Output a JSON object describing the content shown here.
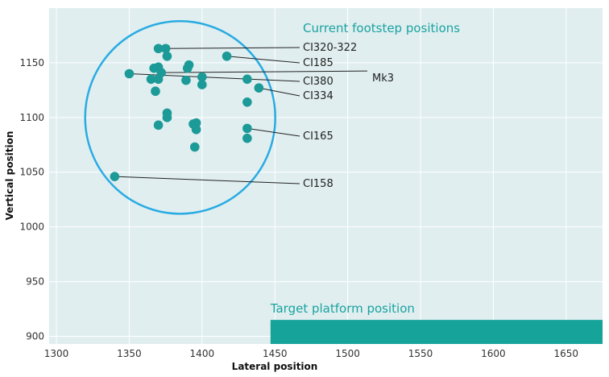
{
  "chart_data": {
    "type": "scatter",
    "title": "",
    "xlabel": "Lateral position",
    "ylabel": "Vertical position",
    "xlim": [
      1295,
      1675
    ],
    "ylim": [
      893,
      1200
    ],
    "x_ticks": [
      1300,
      1350,
      1400,
      1450,
      1500,
      1550,
      1600,
      1650
    ],
    "y_ticks": [
      900,
      950,
      1000,
      1050,
      1100,
      1150
    ],
    "colors": {
      "plot_bg": "#e0eef0",
      "grid": "#ffffff",
      "points": "#1b9a98",
      "circle": "#29abe2",
      "platform": "#16a39a",
      "annotation_title": "#1aa39f"
    },
    "series": [
      {
        "name": "Current footstep positions",
        "points": [
          {
            "x": 1370,
            "y": 1163
          },
          {
            "x": 1375,
            "y": 1163
          },
          {
            "x": 1376,
            "y": 1156
          },
          {
            "x": 1391,
            "y": 1148
          },
          {
            "x": 1390,
            "y": 1145
          },
          {
            "x": 1367,
            "y": 1145
          },
          {
            "x": 1370,
            "y": 1146
          },
          {
            "x": 1372,
            "y": 1141
          },
          {
            "x": 1350,
            "y": 1140
          },
          {
            "x": 1365,
            "y": 1135
          },
          {
            "x": 1370,
            "y": 1135
          },
          {
            "x": 1389,
            "y": 1134
          },
          {
            "x": 1400,
            "y": 1137
          },
          {
            "x": 1400,
            "y": 1130
          },
          {
            "x": 1368,
            "y": 1124
          },
          {
            "x": 1417,
            "y": 1156
          },
          {
            "x": 1431,
            "y": 1135
          },
          {
            "x": 1439,
            "y": 1127
          },
          {
            "x": 1431,
            "y": 1114
          },
          {
            "x": 1376,
            "y": 1104
          },
          {
            "x": 1376,
            "y": 1100
          },
          {
            "x": 1370,
            "y": 1093
          },
          {
            "x": 1394,
            "y": 1094
          },
          {
            "x": 1396,
            "y": 1095
          },
          {
            "x": 1396,
            "y": 1089
          },
          {
            "x": 1431,
            "y": 1090
          },
          {
            "x": 1431,
            "y": 1081
          },
          {
            "x": 1395,
            "y": 1073
          },
          {
            "x": 1340,
            "y": 1046
          }
        ]
      }
    ],
    "annotations": [
      {
        "label": "CI320-322",
        "x": 1375,
        "y": 1163
      },
      {
        "label": "CI185",
        "x": 1417,
        "y": 1156
      },
      {
        "label": "CI380",
        "x": 1350,
        "y": 1140
      },
      {
        "label": "Mk3",
        "x": 1372,
        "y": 1141
      },
      {
        "label": "CI334",
        "x": 1439,
        "y": 1127
      },
      {
        "label": "CI165",
        "x": 1431,
        "y": 1090
      },
      {
        "label": "CI158",
        "x": 1340,
        "y": 1046
      }
    ],
    "region": {
      "label": "Current footstep positions",
      "center_x": 1385,
      "center_y": 1100
    },
    "target": {
      "label": "Target platform position",
      "x_start": 1447,
      "x_end": 1675,
      "y_low": 893,
      "y_high": 915
    }
  }
}
